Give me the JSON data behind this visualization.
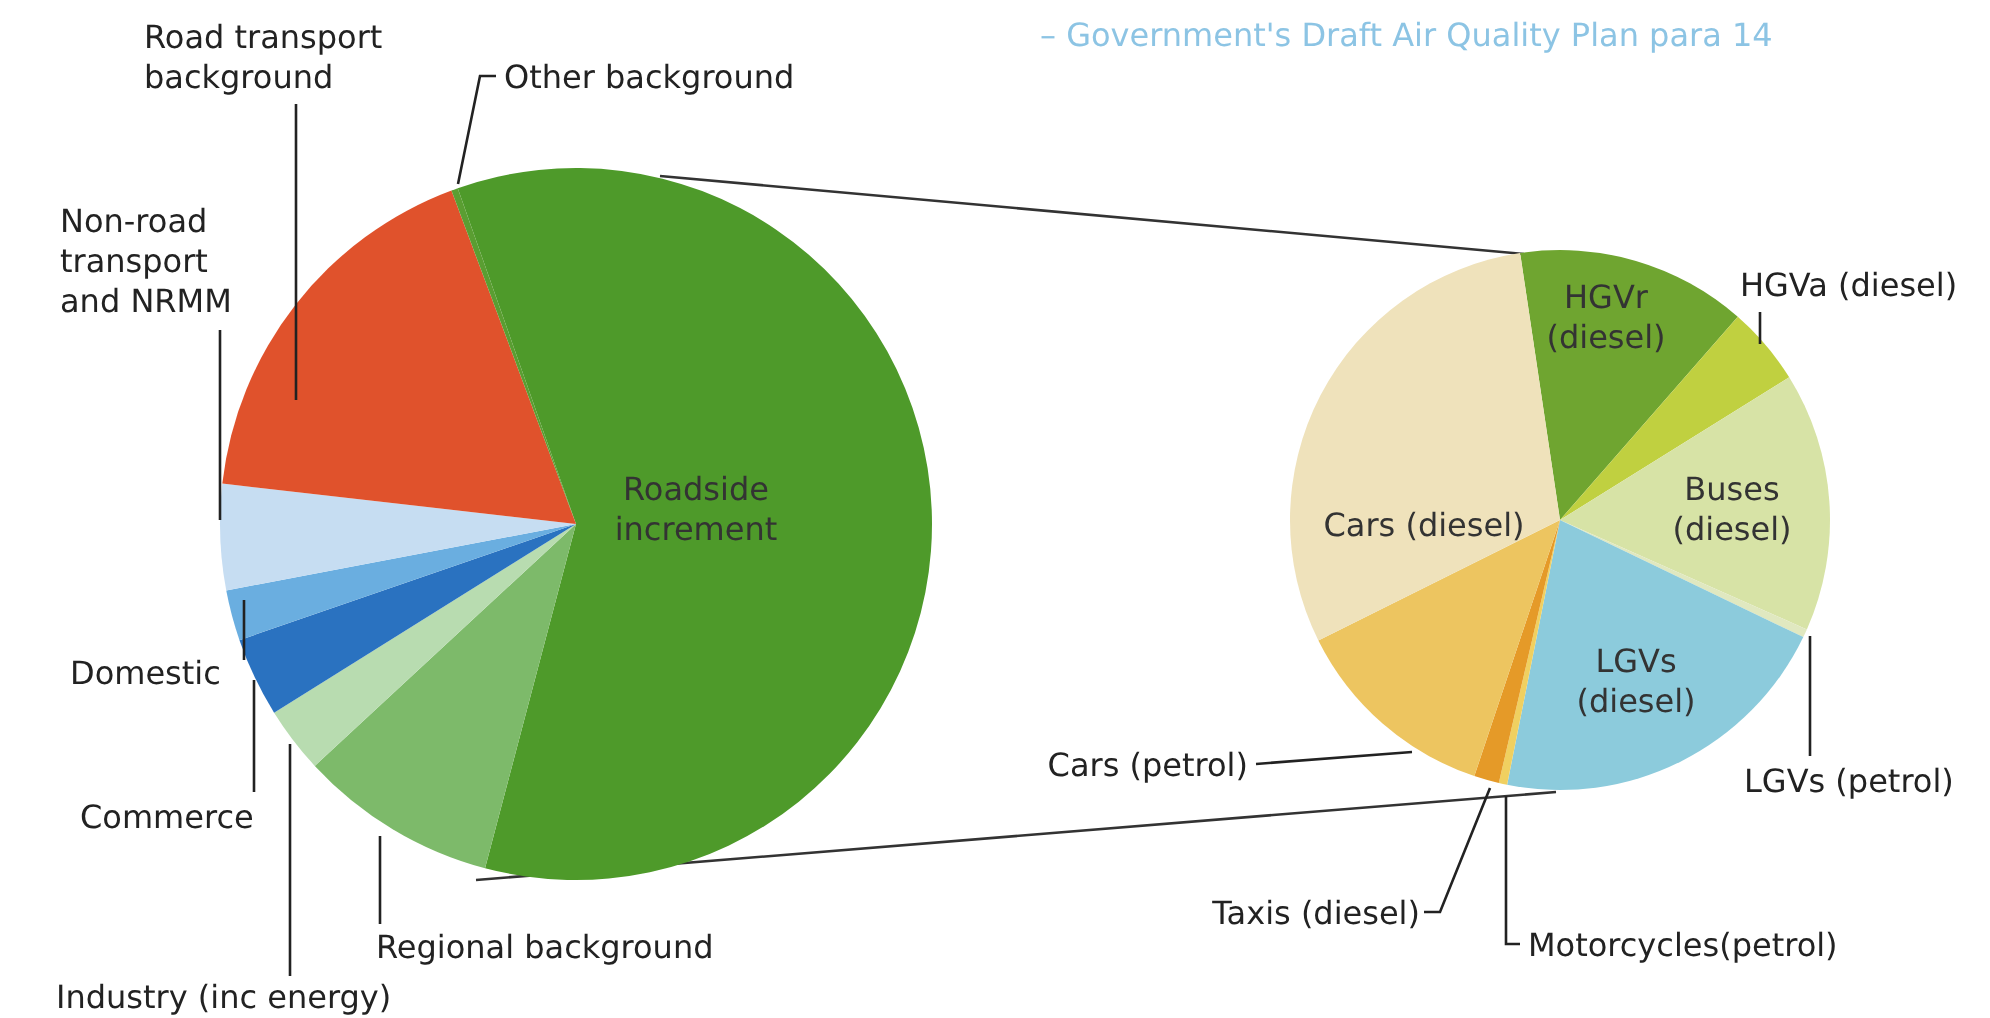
{
  "chart_data": [
    {
      "type": "pie",
      "annotations": [
        "– Government's Draft Air Quality Plan para 14"
      ],
      "categories": [
        "Roadside increment",
        "Regional background",
        "Industry (inc energy)",
        "Commerce",
        "Domestic",
        "Non-road transport and NRMM",
        "Road transport background",
        "Other background"
      ],
      "values": [
        59.5,
        9,
        3,
        3.6,
        2.3,
        4.8,
        17.5,
        0.3
      ],
      "colors": [
        "#4e9a2a",
        "#7dba6a",
        "#b8dcb0",
        "#2a72c0",
        "#6aaee0",
        "#c6ddf2",
        "#e0522c",
        "#5a9e32"
      ]
    },
    {
      "type": "pie",
      "categories": [
        "HGVr (diesel)",
        "HGVa (diesel)",
        "Buses (diesel)",
        "LGVs (petrol)",
        "LGVs (diesel)",
        "Motorcycles(petrol)",
        "Taxis (diesel)",
        "Cars (petrol)",
        "Cars (diesel)"
      ],
      "values": [
        13.8,
        4.7,
        15.5,
        0.5,
        21,
        0.5,
        1.5,
        12.5,
        30
      ],
      "colors": [
        "#6fa530",
        "#c0d040",
        "#d7e3a6",
        "#e0e8c0",
        "#8ccbdc",
        "#f0d060",
        "#e59a28",
        "#edc560",
        "#efe2bb"
      ]
    }
  ]
}
